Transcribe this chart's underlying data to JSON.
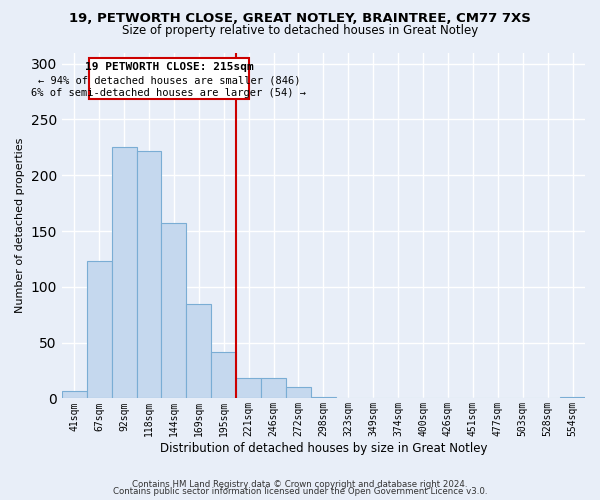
{
  "title1": "19, PETWORTH CLOSE, GREAT NOTLEY, BRAINTREE, CM77 7XS",
  "title2": "Size of property relative to detached houses in Great Notley",
  "xlabel": "Distribution of detached houses by size in Great Notley",
  "ylabel": "Number of detached properties",
  "bin_labels": [
    "41sqm",
    "67sqm",
    "92sqm",
    "118sqm",
    "144sqm",
    "169sqm",
    "195sqm",
    "221sqm",
    "246sqm",
    "272sqm",
    "298sqm",
    "323sqm",
    "349sqm",
    "374sqm",
    "400sqm",
    "426sqm",
    "451sqm",
    "477sqm",
    "503sqm",
    "528sqm",
    "554sqm"
  ],
  "bar_heights": [
    7,
    123,
    225,
    222,
    157,
    85,
    42,
    18,
    18,
    10,
    1,
    0,
    0,
    0,
    0,
    0,
    0,
    0,
    0,
    0,
    1
  ],
  "bar_color": "#c5d8ee",
  "bar_edge_color": "#7aadd4",
  "vline_color": "#cc0000",
  "annotation_title": "19 PETWORTH CLOSE: 215sqm",
  "annotation_line1": "← 94% of detached houses are smaller (846)",
  "annotation_line2": "6% of semi-detached houses are larger (54) →",
  "annotation_box_color": "#ffffff",
  "annotation_box_edge": "#cc0000",
  "ylim": [
    0,
    310
  ],
  "yticks": [
    0,
    50,
    100,
    150,
    200,
    250,
    300
  ],
  "footnote1": "Contains HM Land Registry data © Crown copyright and database right 2024.",
  "footnote2": "Contains public sector information licensed under the Open Government Licence v3.0.",
  "bg_color": "#e8eef8"
}
